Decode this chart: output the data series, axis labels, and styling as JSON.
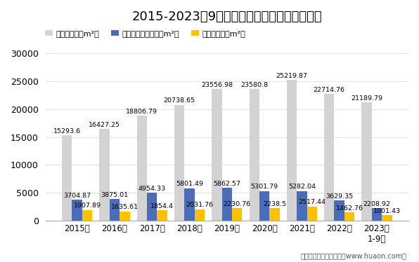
{
  "title": "2015-2023年9月江西省房地产施工及竣工面积",
  "years": [
    "2015年",
    "2016年",
    "2017年",
    "2018年",
    "2019年",
    "2020年",
    "2021年",
    "2022年",
    "2023年\n1-9月"
  ],
  "shigong": [
    15293.6,
    16427.25,
    18806.79,
    20738.65,
    23556.98,
    23580.8,
    25219.87,
    22714.76,
    21189.79
  ],
  "xinkaiGong": [
    3704.87,
    3875.01,
    4954.33,
    5801.49,
    5862.57,
    5301.79,
    5282.04,
    3629.35,
    2208.92
  ],
  "jungong": [
    1907.89,
    1635.61,
    1854.4,
    2031.76,
    2230.76,
    2238.5,
    2517.44,
    1462.76,
    1001.43
  ],
  "shigong_color": "#d3d3d3",
  "xinkaiGong_color": "#4b6cb7",
  "jungong_color": "#ffc000",
  "legend_labels": [
    "施工面积（万m²）",
    "新开工施工面积（万m²）",
    "竣工面积（万m²）"
  ],
  "ylim": [
    0,
    30000
  ],
  "yticks": [
    0,
    5000,
    10000,
    15000,
    20000,
    25000,
    30000
  ],
  "footer": "制图：华经产业研究院（www.huaon.com）",
  "bg_color": "#ffffff",
  "title_fontsize": 13,
  "label_fontsize": 6.8
}
